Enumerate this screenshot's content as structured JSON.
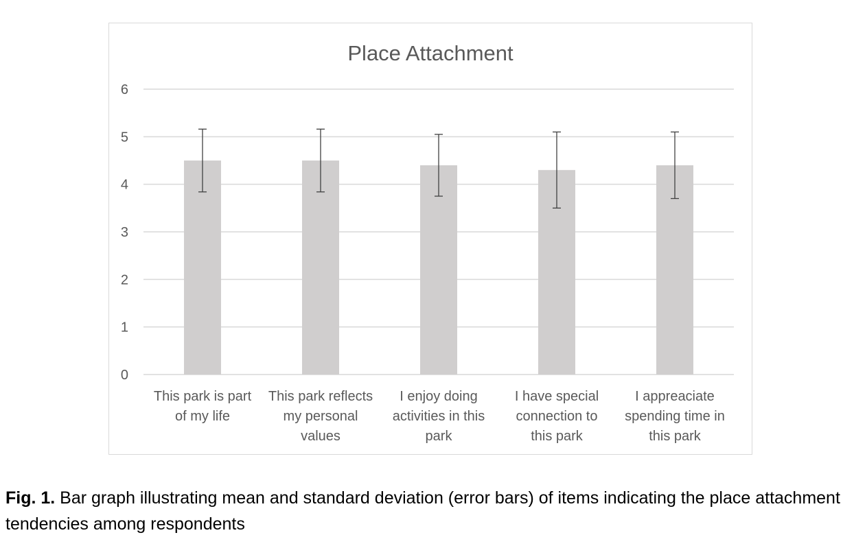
{
  "chart_data": {
    "type": "bar",
    "title": "Place Attachment",
    "categories": [
      [
        "This park is part",
        "of my life"
      ],
      [
        "This park reflects",
        "my personal",
        "values"
      ],
      [
        "I enjoy doing",
        "activities in this",
        "park"
      ],
      [
        "I have special",
        "connection to",
        "this park"
      ],
      [
        "I appreaciate",
        "spending time in",
        "this park"
      ]
    ],
    "values": [
      4.5,
      4.5,
      4.4,
      4.3,
      4.4
    ],
    "error": [
      0.66,
      0.66,
      0.65,
      0.8,
      0.7
    ],
    "ylim": [
      0,
      6
    ],
    "yticks": [
      0,
      1,
      2,
      3,
      4,
      5,
      6
    ],
    "grid": true,
    "xlabel": "",
    "ylabel": "",
    "colors": {
      "bar": "#d0cece",
      "error": "#404040",
      "grid": "#d9d9d9",
      "text": "#595959"
    }
  },
  "caption": {
    "label": "Fig. 1.",
    "text": " Bar graph illustrating mean and standard deviation (error bars) of items indicating the place attachment tendencies among respondents"
  }
}
